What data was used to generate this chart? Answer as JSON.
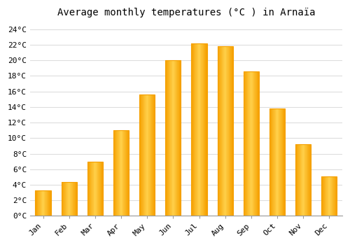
{
  "title": "Average monthly temperatures (°C ) in Arnaïa",
  "months": [
    "Jan",
    "Feb",
    "Mar",
    "Apr",
    "May",
    "Jun",
    "Jul",
    "Aug",
    "Sep",
    "Oct",
    "Nov",
    "Dec"
  ],
  "values": [
    3.3,
    4.4,
    7.0,
    11.0,
    15.6,
    20.0,
    22.2,
    21.8,
    18.6,
    13.8,
    9.2,
    5.1
  ],
  "bar_color_center": "#FFD04A",
  "bar_color_edge": "#F5A000",
  "background_color": "#FFFFFF",
  "grid_color": "#DDDDDD",
  "ylim": [
    0,
    25
  ],
  "yticks": [
    0,
    2,
    4,
    6,
    8,
    10,
    12,
    14,
    16,
    18,
    20,
    22,
    24
  ],
  "title_fontsize": 10,
  "bar_width": 0.6
}
